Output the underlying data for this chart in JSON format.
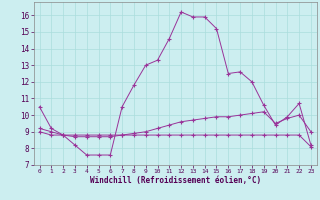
{
  "xlabel": "Windchill (Refroidissement éolien,°C)",
  "background_color": "#cceef0",
  "grid_color": "#aadddd",
  "line_color": "#993399",
  "xlim": [
    -0.5,
    23.5
  ],
  "ylim": [
    7,
    16.8
  ],
  "yticks": [
    7,
    8,
    9,
    10,
    11,
    12,
    13,
    14,
    15,
    16
  ],
  "xticks": [
    0,
    1,
    2,
    3,
    4,
    5,
    6,
    7,
    8,
    9,
    10,
    11,
    12,
    13,
    14,
    15,
    16,
    17,
    18,
    19,
    20,
    21,
    22,
    23
  ],
  "series": [
    {
      "x": [
        0,
        1,
        2,
        3,
        4,
        5,
        6,
        7,
        8,
        9,
        10,
        11,
        12,
        13,
        14,
        15,
        16,
        17,
        18,
        19,
        20,
        21,
        22,
        23
      ],
      "y": [
        10.5,
        9.2,
        8.8,
        8.2,
        7.6,
        7.6,
        7.6,
        10.5,
        11.8,
        13.0,
        13.3,
        14.6,
        16.2,
        15.9,
        15.9,
        15.2,
        12.5,
        12.6,
        12.0,
        10.6,
        9.4,
        9.9,
        10.7,
        8.2
      ]
    },
    {
      "x": [
        0,
        1,
        2,
        3,
        4,
        5,
        6,
        7,
        8,
        9,
        10,
        11,
        12,
        13,
        14,
        15,
        16,
        17,
        18,
        19,
        20,
        21,
        22,
        23
      ],
      "y": [
        9.0,
        8.8,
        8.8,
        8.8,
        8.8,
        8.8,
        8.8,
        8.8,
        8.8,
        8.8,
        8.8,
        8.8,
        8.8,
        8.8,
        8.8,
        8.8,
        8.8,
        8.8,
        8.8,
        8.8,
        8.8,
        8.8,
        8.8,
        8.1
      ]
    },
    {
      "x": [
        0,
        1,
        2,
        3,
        4,
        5,
        6,
        7,
        8,
        9,
        10,
        11,
        12,
        13,
        14,
        15,
        16,
        17,
        18,
        19,
        20,
        21,
        22,
        23
      ],
      "y": [
        9.2,
        9.0,
        8.8,
        8.7,
        8.7,
        8.7,
        8.7,
        8.8,
        8.9,
        9.0,
        9.2,
        9.4,
        9.6,
        9.7,
        9.8,
        9.9,
        9.9,
        10.0,
        10.1,
        10.2,
        9.5,
        9.8,
        10.0,
        9.0
      ]
    }
  ]
}
